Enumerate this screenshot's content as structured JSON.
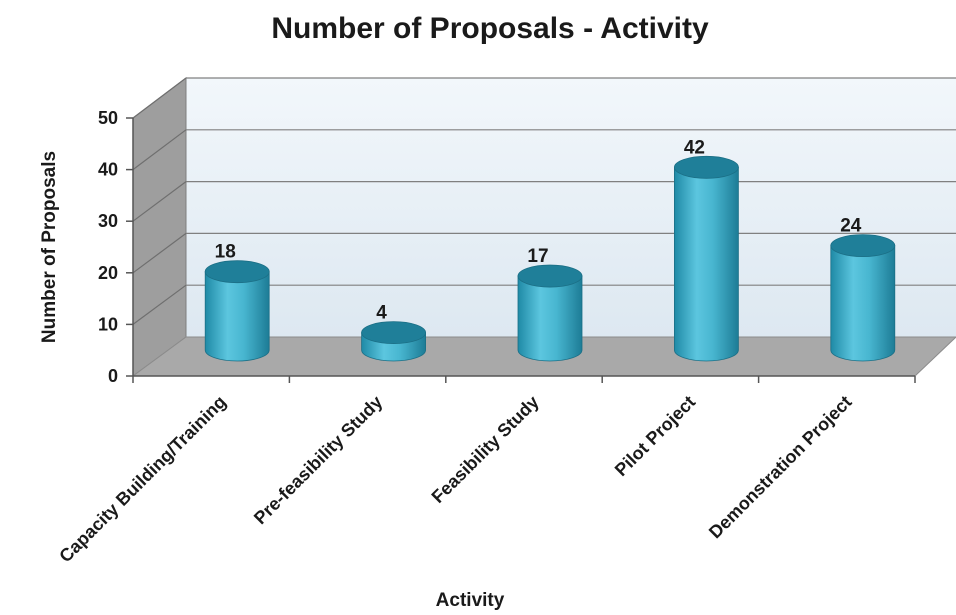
{
  "chart_data": {
    "type": "bar",
    "title": "Number of Proposals - Activity",
    "xlabel": "Activity",
    "ylabel": "Number of Proposals",
    "categories": [
      "Capacity Building/Training",
      "Pre-feasibility Study",
      "Feasibility Study",
      "Pilot Project",
      "Demonstration Project"
    ],
    "values": [
      18,
      4,
      17,
      42,
      24
    ],
    "data_labels": [
      "18",
      "4",
      "17",
      "42",
      "24"
    ],
    "ylim": [
      0,
      50
    ],
    "yticks": [
      "0",
      "10",
      "20",
      "30",
      "40",
      "50"
    ],
    "grid": true,
    "legend": "none",
    "colors": {
      "bar_body": "#3fb0cc",
      "bar_top": "#1f7f99",
      "back_wall": "#e8f1f8",
      "side_wall": "#9c9c9c",
      "floor": "#a9a9a9",
      "gridline": "#808080"
    }
  }
}
